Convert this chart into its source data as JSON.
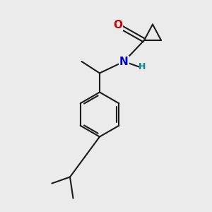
{
  "bg_color": "#ebebeb",
  "bond_color": "#1a1a1a",
  "O_color": "#cc0000",
  "N_color": "#0000cc",
  "H_color": "#008899",
  "bond_width": 1.5,
  "font_size_atom": 10,
  "xlim": [
    0,
    10
  ],
  "ylim": [
    0,
    10
  ]
}
